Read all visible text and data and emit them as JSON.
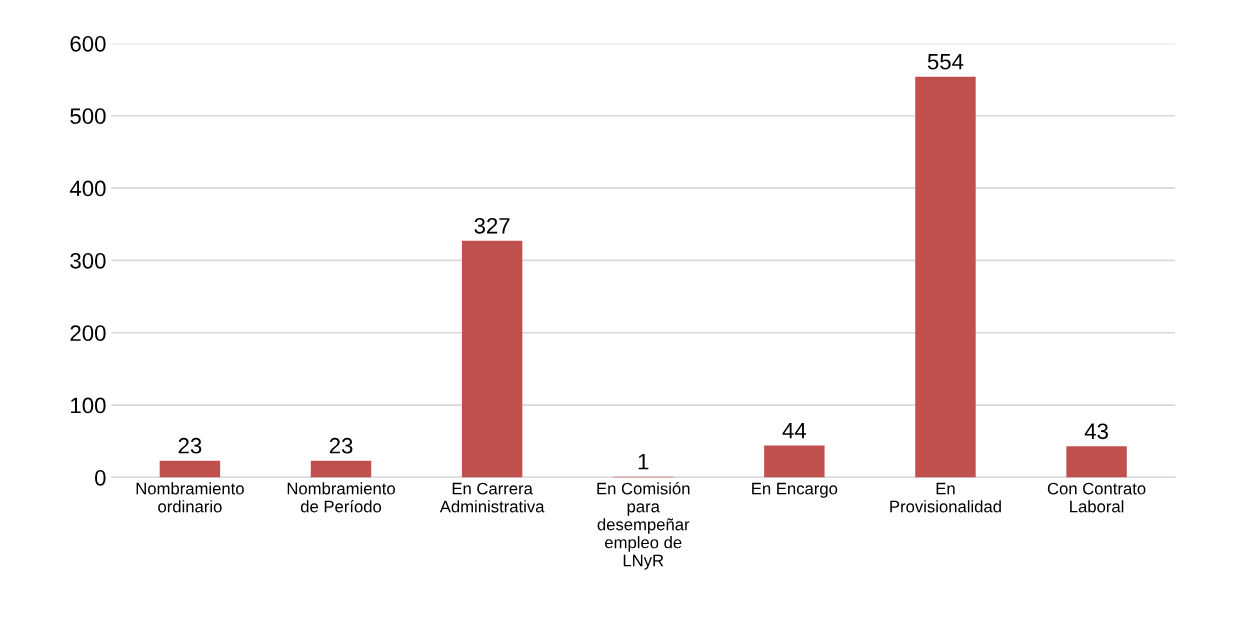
{
  "chart_data": {
    "type": "bar",
    "categories": [
      "Nombramiento\nordinario",
      "Nombramiento\nde Período",
      "En Carrera\nAdministrativa",
      "En Comisión\npara\ndesempeñar\nempleo de\nLNyR",
      "En Encargo",
      "En\nProvisionalidad",
      "Con Contrato\nLaboral"
    ],
    "values": [
      23,
      23,
      327,
      1,
      44,
      554,
      43
    ],
    "color": "#c0504d",
    "ylim": [
      0,
      600
    ],
    "yticks": [
      0,
      100,
      200,
      300,
      400,
      500,
      600
    ],
    "grid": "y",
    "data_labels": true
  }
}
